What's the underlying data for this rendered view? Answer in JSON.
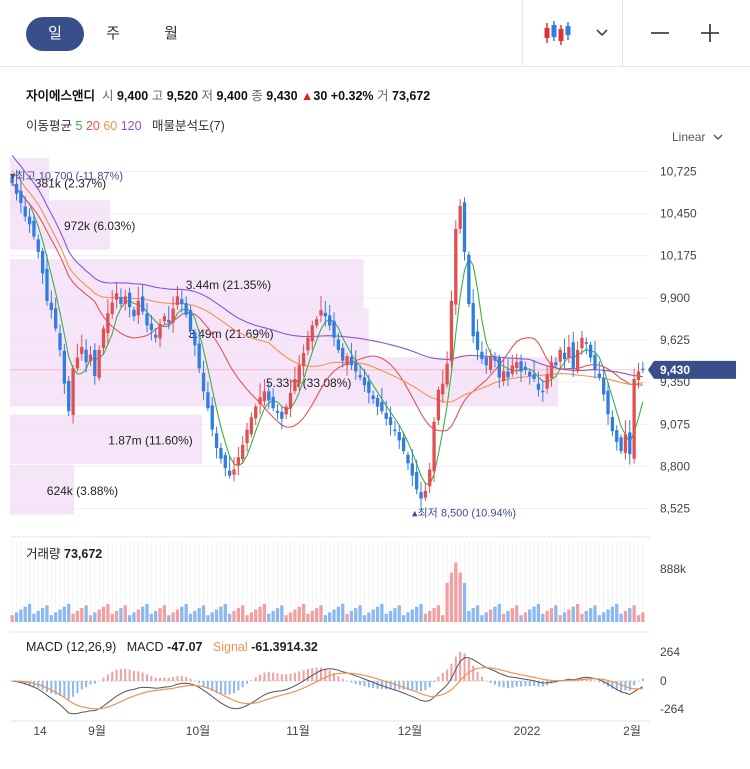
{
  "tabs": [
    "일",
    "주",
    "월"
  ],
  "stock": {
    "name": "자이에스앤디",
    "open_label": "시",
    "open": "9,400",
    "high_label": "고",
    "high": "9,520",
    "low_label": "저",
    "low": "9,400",
    "close_label": "종",
    "close": "9,430",
    "change": "30",
    "change_pct": "+0.32%",
    "volume_label": "거",
    "volume": "73,672"
  },
  "ma_legend": {
    "label": "이동평균",
    "periods": [
      "5",
      "20",
      "60",
      "120"
    ],
    "colors": [
      "#3cb043",
      "#e05555",
      "#f0944d",
      "#8a55d4"
    ],
    "volume_profile_label": "매물분석도(7)"
  },
  "scale_mode": "Linear",
  "colors": {
    "up": "#e05050",
    "down": "#2f7de1",
    "accent": "#3b4e8c",
    "profile": "#f3dcf7"
  },
  "chart_data": [
    {
      "type": "candlestick",
      "price_axis": {
        "ticks": [
          "10,725",
          "10,450",
          "10,175",
          "9,900",
          "9,625",
          "9,350",
          "9,075",
          "8,800",
          "8,525"
        ],
        "range": [
          8450,
          10800
        ]
      },
      "current_price_tag": "9,430",
      "high_marker": {
        "label": "최고",
        "value": "10,700",
        "pct": "(-11.87%)"
      },
      "low_marker": {
        "label": "최저",
        "value": "8,500",
        "pct": "(10.94%)"
      },
      "x_labels": [
        "14",
        "9월",
        "10월",
        "11월",
        "12월",
        "2022",
        "2월"
      ],
      "volume_profile": [
        {
          "label": "381k (2.37%)",
          "price": 10645,
          "volume_k": 381
        },
        {
          "label": "972k (6.03%)",
          "price": 10370,
          "volume_k": 972
        },
        {
          "label": "3.44m (21.35%)",
          "price": 9985,
          "volume_k": 3440
        },
        {
          "label": "3.49m (21.69%)",
          "price": 9665,
          "volume_k": 3490
        },
        {
          "label": "5.33m (33.08%)",
          "price": 9345,
          "volume_k": 5330
        },
        {
          "label": "1.87m (11.60%)",
          "price": 8970,
          "volume_k": 1870
        },
        {
          "label": "624k (3.88%)",
          "price": 8640,
          "volume_k": 624
        }
      ],
      "close": [
        10650,
        10580,
        10520,
        10430,
        10380,
        10300,
        10200,
        10060,
        9880,
        9820,
        9700,
        9560,
        9340,
        9160,
        9440,
        9510,
        9580,
        9480,
        9530,
        9390,
        9560,
        9700,
        9800,
        9870,
        9930,
        9860,
        9910,
        9840,
        9780,
        9880,
        9810,
        9720,
        9690,
        9640,
        9730,
        9780,
        9740,
        9830,
        9910,
        9860,
        9790,
        9690,
        9590,
        9440,
        9290,
        9180,
        9040,
        8920,
        8850,
        8790,
        8740,
        8780,
        8860,
        8940,
        9040,
        9120,
        9190,
        9250,
        9290,
        9230,
        9180,
        9150,
        9110,
        9190,
        9280,
        9370,
        9460,
        9540,
        9640,
        9720,
        9760,
        9820,
        9780,
        9720,
        9640,
        9560,
        9490,
        9520,
        9460,
        9420,
        9380,
        9330,
        9280,
        9240,
        9190,
        9160,
        9110,
        9070,
        9030,
        8970,
        8900,
        8820,
        8740,
        8650,
        8590,
        8640,
        8780,
        9090,
        9300,
        9340,
        9470,
        9880,
        10350,
        10500,
        10200,
        9860,
        9650,
        9560,
        9500,
        9460,
        9520,
        9490,
        9380,
        9420,
        9380,
        9460,
        9480,
        9420,
        9430,
        9390,
        9370,
        9300,
        9290,
        9400,
        9480,
        9460,
        9560,
        9500,
        9580,
        9440,
        9560,
        9640,
        9600,
        9510,
        9430,
        9380,
        9270,
        9140,
        9030,
        8960,
        8900,
        9010,
        8880,
        9370,
        9420,
        9430
      ],
      "volume": [
        {
          "date_label": "max_axis",
          "value": "888k"
        }
      ],
      "volume_axis": {
        "max_label": "888k"
      },
      "volume_label": "거래량",
      "volume_value": "73,672"
    },
    {
      "type": "line",
      "title": "MACD (12,26,9)",
      "series": [
        {
          "name": "MACD",
          "last": "-47.07",
          "color": "#555555"
        },
        {
          "name": "Signal",
          "last": "-61.3914.32",
          "color": "#f0944d"
        }
      ],
      "y_ticks": [
        "264",
        "0",
        "-264"
      ]
    }
  ]
}
